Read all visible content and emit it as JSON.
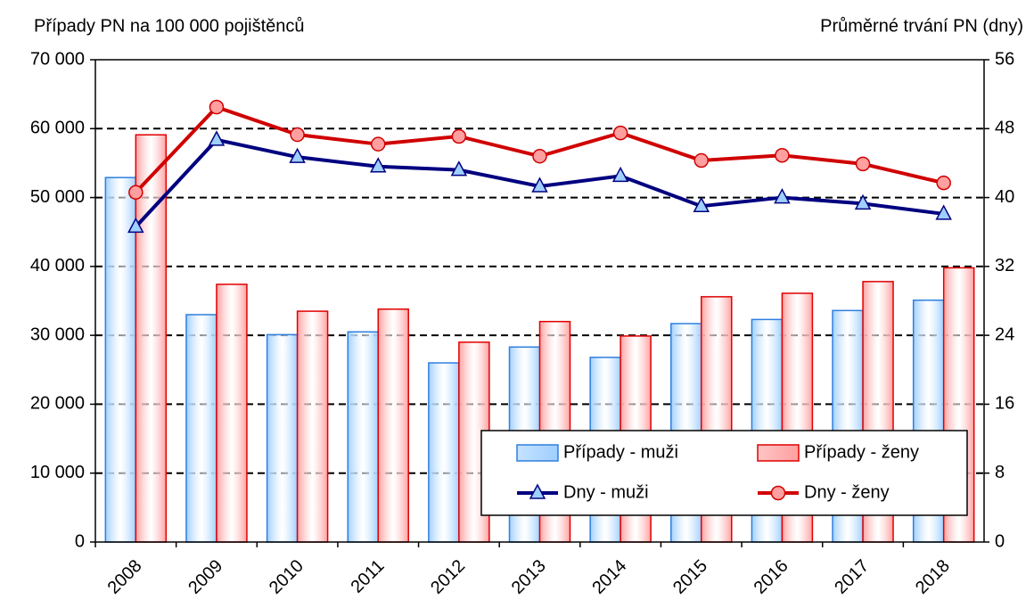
{
  "chart_data": {
    "type": "bar",
    "title": "Případy PN na 100 000 pojištěnců",
    "y2_title": "Průměrné trvání PN (dny)",
    "categories": [
      "2008",
      "2009",
      "2010",
      "2011",
      "2012",
      "2013",
      "2014",
      "2015",
      "2016",
      "2017",
      "2018"
    ],
    "series": [
      {
        "name": "Případy - muži",
        "type": "bar",
        "color": "#9fcfff",
        "border_color": "#2f7fdf",
        "values": [
          52900,
          33000,
          30100,
          30500,
          26000,
          28300,
          26800,
          31700,
          32300,
          33600,
          35100
        ]
      },
      {
        "name": "Případy - ženy",
        "type": "bar",
        "color": "#ff9f9f",
        "border_color": "#e00000",
        "values": [
          59100,
          37400,
          33500,
          33800,
          29000,
          32000,
          29900,
          35600,
          36100,
          37800,
          39800
        ]
      },
      {
        "name": "Dny - muži",
        "type": "line",
        "axis": "y2",
        "color": "#000080",
        "marker": "triangle",
        "marker_color": "#9fcfff",
        "values": [
          36.6,
          46.7,
          44.7,
          43.6,
          43.2,
          41.3,
          42.5,
          39.0,
          40.0,
          39.3,
          38.1
        ]
      },
      {
        "name": "Dny - ženy",
        "type": "line",
        "axis": "y2",
        "color": "#d00000",
        "marker": "circle",
        "marker_color": "#ff9f9f",
        "values": [
          40.6,
          50.5,
          47.3,
          46.2,
          47.1,
          44.8,
          47.5,
          44.3,
          44.9,
          43.9,
          41.7
        ]
      }
    ],
    "ylim": [
      0,
      70000
    ],
    "yticks": [
      0,
      {
        "value": 10000,
        "label": "10 000"
      },
      {
        "value": 20000,
        "label": "20 000"
      },
      {
        "value": 30000,
        "label": "30 000"
      },
      {
        "value": 40000,
        "label": "40 000"
      },
      {
        "value": 50000,
        "label": "50 000"
      },
      {
        "value": 60000,
        "label": "60 000"
      },
      {
        "value": 70000,
        "label": "70 000"
      }
    ],
    "y2lim": [
      0,
      56
    ],
    "y2ticks": [
      0,
      8,
      16,
      24,
      32,
      40,
      48,
      56
    ],
    "grid": true,
    "legend": "lower right"
  }
}
